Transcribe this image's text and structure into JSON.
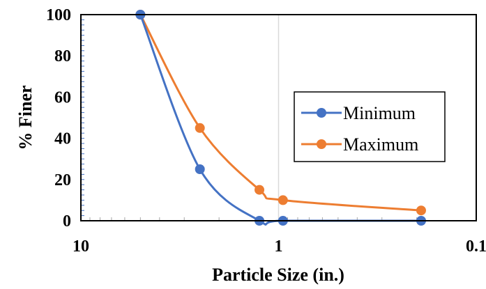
{
  "chart_data": {
    "type": "line",
    "x_scale": "log",
    "x_reversed": true,
    "xlim": [
      10,
      0.1
    ],
    "ylim": [
      0,
      100
    ],
    "xlabel": "Particle Size (in.)",
    "ylabel": "% Finer",
    "x_ticks": [
      {
        "value": 10,
        "label": "10"
      },
      {
        "value": 1,
        "label": "1"
      },
      {
        "value": 0.1,
        "label": "0.1"
      }
    ],
    "y_ticks": [
      {
        "value": 0,
        "label": "0"
      },
      {
        "value": 20,
        "label": "20"
      },
      {
        "value": 40,
        "label": "40"
      },
      {
        "value": 60,
        "label": "60"
      },
      {
        "value": 80,
        "label": "80"
      },
      {
        "value": 100,
        "label": "100"
      }
    ],
    "grid": "vertical line at 1 only",
    "legend_position": "right",
    "series": [
      {
        "name": "Minimum",
        "color": "#4472c4",
        "x": [
          5,
          2.5,
          1.25,
          0.95,
          0.19
        ],
        "y": [
          100,
          25,
          0,
          0,
          0
        ]
      },
      {
        "name": "Maximum",
        "color": "#ed7d31",
        "x": [
          5,
          2.5,
          1.25,
          0.95,
          0.19
        ],
        "y": [
          100,
          45,
          15,
          10,
          5
        ]
      }
    ]
  }
}
